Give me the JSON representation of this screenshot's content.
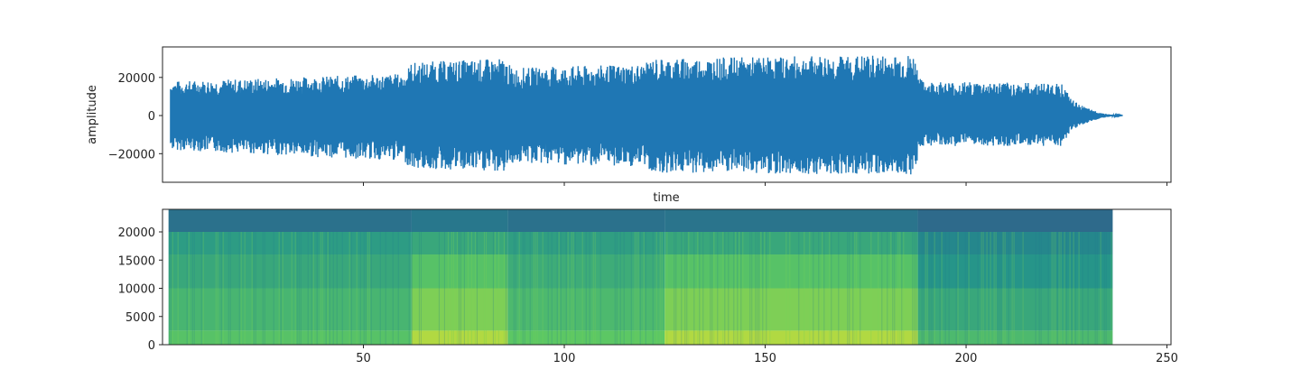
{
  "chart_data": [
    {
      "type": "line",
      "title": "",
      "xlabel": "time",
      "ylabel": "amplitude",
      "xlim": [
        0,
        251
      ],
      "ylim": [
        -35000,
        36000
      ],
      "yticks": [
        -20000,
        0,
        20000
      ],
      "ytick_labels": [
        "−20000",
        "0",
        "20000"
      ],
      "xticks": [
        50,
        100,
        150,
        200,
        250
      ],
      "show_xtick_labels": false,
      "grid": false,
      "color": "#1f77b4",
      "series": [
        {
          "x": [
            2,
            60,
            62,
            85,
            87,
            120,
            122,
            187,
            189,
            224,
            226,
            228,
            230,
            232,
            234,
            236,
            238,
            239
          ],
          "y_max": [
            18000,
            22000,
            28000,
            30000,
            25000,
            27000,
            30000,
            32000,
            18000,
            17000,
            9000,
            6000,
            4000,
            2500,
            1200,
            500,
            200,
            0
          ],
          "y_min": [
            -18000,
            -24000,
            -28000,
            -30000,
            -25000,
            -27000,
            -30000,
            -31000,
            -16000,
            -16000,
            -9000,
            -6000,
            -4000,
            -2500,
            -1200,
            -500,
            -200,
            0
          ]
        }
      ]
    },
    {
      "type": "heatmap",
      "title": "",
      "xlabel": "",
      "ylabel": "",
      "xlim": [
        0,
        251
      ],
      "ylim": [
        0,
        24000
      ],
      "yticks": [
        0,
        5000,
        10000,
        15000,
        20000
      ],
      "xticks": [
        50,
        100,
        150,
        200,
        250
      ],
      "colormap": "viridis",
      "x_extent": [
        1.5,
        236.5
      ],
      "segments": [
        {
          "x": [
            1.5,
            62
          ],
          "levels": [
            0.72,
            0.66,
            0.6,
            0.55,
            0.38
          ]
        },
        {
          "x": [
            62,
            86
          ],
          "levels": [
            0.88,
            0.8,
            0.72,
            0.6,
            0.42
          ]
        },
        {
          "x": [
            86,
            125
          ],
          "levels": [
            0.74,
            0.68,
            0.62,
            0.56,
            0.38
          ]
        },
        {
          "x": [
            125,
            188
          ],
          "levels": [
            0.88,
            0.8,
            0.72,
            0.6,
            0.4
          ]
        },
        {
          "x": [
            188,
            236.5
          ],
          "levels": [
            0.68,
            0.6,
            0.52,
            0.46,
            0.34
          ]
        }
      ],
      "band_edges": [
        0,
        2500,
        10000,
        16000,
        20000,
        24000
      ]
    }
  ]
}
